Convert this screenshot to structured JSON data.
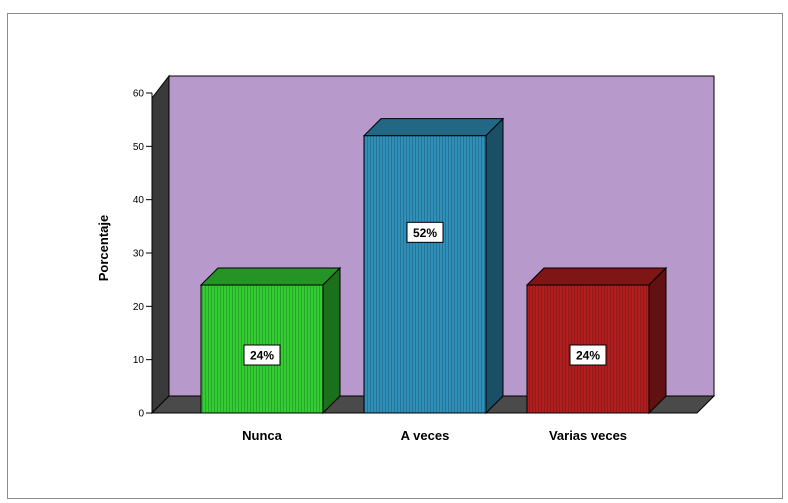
{
  "chart_data": {
    "type": "bar",
    "categories": [
      "Nunca",
      "A veces",
      "Varias veces"
    ],
    "values": [
      24,
      52,
      24
    ],
    "data_labels": [
      "24%",
      "52%",
      "24%"
    ],
    "title": "",
    "xlabel": "",
    "ylabel": "Porcentaje",
    "ylim": [
      0,
      60
    ],
    "yticks": [
      0,
      10,
      20,
      30,
      40,
      50,
      60
    ],
    "grid": false,
    "legend": "none",
    "colors": {
      "bars": [
        "#33cc33",
        "#2f8fb8",
        "#b01e1e"
      ],
      "back_wall": "#b899cc",
      "side_wall": "#3a3a3a",
      "floor": "#4a4a4a"
    }
  }
}
